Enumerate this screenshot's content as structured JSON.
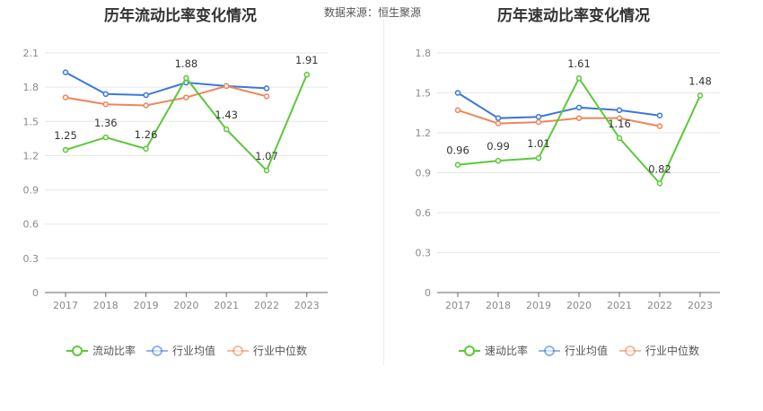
{
  "source": "数据来源：恒生聚源",
  "chart_data": [
    {
      "type": "line",
      "title": "历年流动比率变化情况",
      "categories": [
        "2017",
        "2018",
        "2019",
        "2020",
        "2021",
        "2022",
        "2023"
      ],
      "yticks": [
        "0",
        "0.3",
        "0.6",
        "0.9",
        "1.2",
        "1.5",
        "1.8",
        "2.1"
      ],
      "ylim": [
        0,
        2.1
      ],
      "grid": true,
      "legend_position": "bottom",
      "series": [
        {
          "name": "流动比率",
          "color": "#5cc83a",
          "values": [
            1.25,
            1.36,
            1.26,
            1.88,
            1.43,
            1.07,
            1.91
          ],
          "labels": [
            "1.25",
            "1.36",
            "1.26",
            "1.88",
            "1.43",
            "1.07",
            "1.91"
          ]
        },
        {
          "name": "行业均值",
          "color": "#3b78d8",
          "values": [
            1.93,
            1.74,
            1.73,
            1.84,
            1.81,
            1.79,
            null
          ]
        },
        {
          "name": "行业中位数",
          "color": "#ee8657",
          "values": [
            1.71,
            1.65,
            1.64,
            1.71,
            1.81,
            1.72,
            null
          ]
        }
      ]
    },
    {
      "type": "line",
      "title": "历年速动比率变化情况",
      "categories": [
        "2017",
        "2018",
        "2019",
        "2020",
        "2021",
        "2022",
        "2023"
      ],
      "yticks": [
        "0",
        "0.3",
        "0.6",
        "0.9",
        "1.2",
        "1.5",
        "1.8"
      ],
      "ylim": [
        0,
        1.8
      ],
      "grid": true,
      "legend_position": "bottom",
      "series": [
        {
          "name": "速动比率",
          "color": "#5cc83a",
          "values": [
            0.96,
            0.99,
            1.01,
            1.61,
            1.16,
            0.82,
            1.48
          ],
          "labels": [
            "0.96",
            "0.99",
            "1.01",
            "1.61",
            "1.16",
            "0.82",
            "1.48"
          ]
        },
        {
          "name": "行业均值",
          "color": "#3b78d8",
          "values": [
            1.5,
            1.31,
            1.32,
            1.39,
            1.37,
            1.33,
            null
          ]
        },
        {
          "name": "行业中位数",
          "color": "#ee8657",
          "values": [
            1.37,
            1.27,
            1.28,
            1.31,
            1.31,
            1.25,
            null
          ]
        }
      ]
    }
  ]
}
